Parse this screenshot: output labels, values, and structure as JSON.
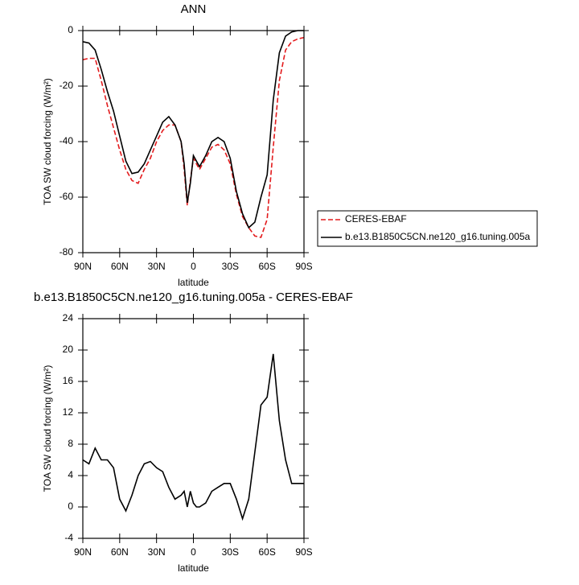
{
  "chart_data": [
    {
      "type": "line",
      "title": "ANN",
      "xlabel": "latitude",
      "ylabel": "TOA SW cloud forcing (W/m²)",
      "x": [
        90,
        85,
        80,
        75,
        70,
        65,
        60,
        55,
        50,
        45,
        40,
        35,
        30,
        25,
        20,
        15,
        10,
        7.5,
        5,
        2.5,
        0,
        -2.5,
        -5,
        -10,
        -15,
        -20,
        -25,
        -30,
        -35,
        -40,
        -45,
        -50,
        -55,
        -60,
        -65,
        -70,
        -75,
        -80,
        -85,
        -90
      ],
      "xlim": [
        90,
        -90
      ],
      "xticks": [
        {
          "value": 90,
          "label": "90N"
        },
        {
          "value": 60,
          "label": "60N"
        },
        {
          "value": 30,
          "label": "30N"
        },
        0,
        {
          "value": -30,
          "label": "30S"
        },
        {
          "value": -60,
          "label": "60S"
        },
        {
          "value": -90,
          "label": "90S"
        }
      ],
      "ylim": [
        -80,
        0
      ],
      "yticks": [
        0,
        -20,
        -40,
        -60,
        -80
      ],
      "series": [
        {
          "name": "CERES-EBAF",
          "color": "#e31a1c",
          "dash": true,
          "values": [
            -10.5,
            -10,
            -10,
            -18,
            -27,
            -35,
            -43,
            -50,
            -54,
            -55,
            -50,
            -46,
            -40,
            -36,
            -34,
            -34,
            -40,
            -50,
            -63,
            -54,
            -46,
            -48,
            -50,
            -46,
            -42,
            -41,
            -43,
            -48,
            -59,
            -67,
            -71,
            -74,
            -74.5,
            -68,
            -42,
            -18,
            -7,
            -4,
            -3,
            -2.5
          ]
        },
        {
          "name": "b.e13.B1850C5CN.ne120_g16.tuning.005a",
          "color": "#000000",
          "dash": false,
          "values": [
            -4,
            -4.5,
            -7,
            -14,
            -22,
            -29,
            -38,
            -47,
            -51.5,
            -51,
            -48,
            -43,
            -38,
            -33,
            -31,
            -34,
            -40,
            -48,
            -62,
            -55,
            -45,
            -47,
            -49,
            -45,
            -40,
            -38.5,
            -40,
            -46,
            -58,
            -66,
            -71,
            -69,
            -60,
            -52,
            -25,
            -8,
            -2,
            -0.5,
            0,
            0
          ]
        }
      ]
    },
    {
      "type": "line",
      "title": "b.e13.B1850C5CN.ne120_g16.tuning.005a - CERES-EBAF",
      "xlabel": "latitude",
      "ylabel": "TOA SW cloud forcing (W/m²)",
      "x": [
        90,
        85,
        80,
        75,
        70,
        65,
        60,
        55,
        50,
        45,
        40,
        35,
        30,
        25,
        20,
        15,
        10,
        7.5,
        5,
        2.5,
        0,
        -2.5,
        -5,
        -10,
        -15,
        -20,
        -25,
        -30,
        -35,
        -40,
        -45,
        -50,
        -55,
        -60,
        -65,
        -70,
        -75,
        -80,
        -85,
        -90
      ],
      "xlim": [
        90,
        -90
      ],
      "xticks": [
        {
          "value": 90,
          "label": "90N"
        },
        {
          "value": 60,
          "label": "60N"
        },
        {
          "value": 30,
          "label": "30N"
        },
        0,
        {
          "value": -30,
          "label": "30S"
        },
        {
          "value": -60,
          "label": "60S"
        },
        {
          "value": -90,
          "label": "90S"
        }
      ],
      "ylim": [
        -4,
        24
      ],
      "yticks": [
        -4,
        0,
        4,
        8,
        12,
        16,
        20,
        24
      ],
      "series": [
        {
          "color": "#000000",
          "dash": false,
          "values": [
            6,
            5.5,
            7.5,
            6,
            6,
            5,
            1,
            -0.5,
            1.5,
            4,
            5.5,
            5.8,
            5,
            4.5,
            2.5,
            1,
            1.5,
            2,
            0,
            2,
            0.5,
            0,
            0,
            0.5,
            2,
            2.5,
            3,
            3,
            1,
            -1.5,
            1,
            7,
            13,
            14,
            19.5,
            11,
            6,
            3,
            3,
            3
          ]
        }
      ]
    }
  ]
}
